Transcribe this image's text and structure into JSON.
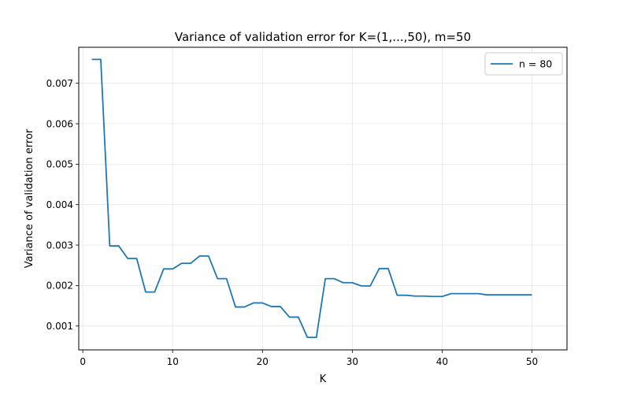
{
  "chart_data": {
    "type": "line",
    "title": "Variance of validation error for K=(1,...,50), m=50",
    "xlabel": "K",
    "ylabel": "Variance of validation error",
    "xlim": [
      -0.45,
      53.9
    ],
    "ylim": [
      0.00041,
      0.00789
    ],
    "xticks": [
      0,
      10,
      20,
      30,
      40,
      50
    ],
    "xtick_labels": [
      "0",
      "10",
      "20",
      "30",
      "40",
      "50"
    ],
    "yticks": [
      0.001,
      0.002,
      0.003,
      0.004,
      0.005,
      0.006,
      0.007
    ],
    "ytick_labels": [
      "0.001",
      "0.002",
      "0.003",
      "0.004",
      "0.005",
      "0.006",
      "0.007"
    ],
    "grid": true,
    "legend_position": "upper-right",
    "colors": {
      "series": "#1f77b4",
      "grid": "#e6e6e6",
      "axis": "#000000"
    },
    "series": [
      {
        "name": "n = 80",
        "x": [
          1,
          2,
          3,
          4,
          5,
          6,
          7,
          8,
          9,
          10,
          11,
          12,
          13,
          14,
          15,
          16,
          17,
          18,
          19,
          20,
          21,
          22,
          23,
          24,
          25,
          26,
          27,
          28,
          29,
          30,
          31,
          32,
          33,
          34,
          35,
          36,
          37,
          38,
          39,
          40,
          41,
          42,
          43,
          44,
          45,
          46,
          47,
          48,
          49,
          50
        ],
        "y": [
          0.00759,
          0.00759,
          0.00298,
          0.00298,
          0.00267,
          0.00267,
          0.00184,
          0.00184,
          0.00241,
          0.00241,
          0.00255,
          0.00255,
          0.00273,
          0.00273,
          0.00217,
          0.00217,
          0.00147,
          0.00147,
          0.00157,
          0.00157,
          0.00148,
          0.00148,
          0.00122,
          0.00122,
          0.00072,
          0.00072,
          0.00217,
          0.00217,
          0.00207,
          0.00207,
          0.00199,
          0.00199,
          0.00242,
          0.00242,
          0.00176,
          0.00176,
          0.00174,
          0.00174,
          0.00173,
          0.00173,
          0.0018,
          0.0018,
          0.0018,
          0.0018,
          0.00177,
          0.00177,
          0.00177,
          0.00177,
          0.00177,
          0.00177
        ]
      }
    ]
  }
}
